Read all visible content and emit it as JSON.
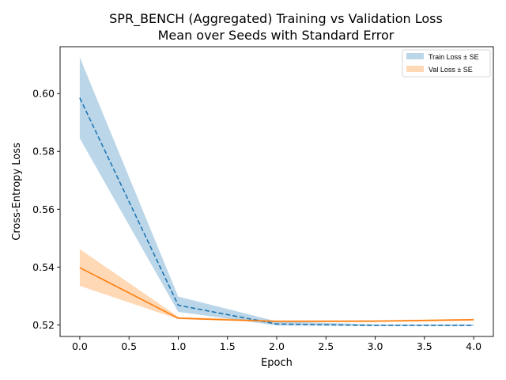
{
  "chart_data": {
    "type": "line",
    "title": "SPR_BENCH (Aggregated) Training vs Validation Loss",
    "subtitle": "Mean over Seeds with Standard Error",
    "xlabel": "Epoch",
    "ylabel": "Cross-Entropy Loss",
    "xlim": [
      -0.2,
      4.2
    ],
    "ylim": [
      0.516,
      0.6162
    ],
    "x_ticks": [
      0.0,
      0.5,
      1.0,
      1.5,
      2.0,
      2.5,
      3.0,
      3.5,
      4.0
    ],
    "x_tick_labels": [
      "0.0",
      "0.5",
      "1.0",
      "1.5",
      "2.0",
      "2.5",
      "3.0",
      "3.5",
      "4.0"
    ],
    "y_ticks": [
      0.52,
      0.54,
      0.56,
      0.58,
      0.6
    ],
    "y_tick_labels": [
      "0.52",
      "0.54",
      "0.56",
      "0.58",
      "0.60"
    ],
    "grid": false,
    "legend_position": "top-right",
    "legend": [
      "Train Loss ± SE",
      "Val Loss ± SE"
    ],
    "x": [
      0,
      1,
      2,
      3,
      4
    ],
    "series": [
      {
        "name": "Train Loss",
        "values": [
          0.5985,
          0.5268,
          0.5203,
          0.5198,
          0.5198
        ],
        "lower": [
          0.5845,
          0.5245,
          0.5198,
          0.5196,
          0.5196
        ],
        "upper": [
          0.6125,
          0.5298,
          0.5212,
          0.5202,
          0.5202
        ],
        "color": "#1f77b4",
        "band_color": "#1f77b4",
        "band_opacity": 0.3,
        "dashed": true
      },
      {
        "name": "Val Loss",
        "values": [
          0.5398,
          0.5223,
          0.5212,
          0.5213,
          0.5218
        ],
        "lower": [
          0.5335,
          0.522,
          0.5209,
          0.521,
          0.5214
        ],
        "upper": [
          0.5462,
          0.5228,
          0.5216,
          0.5216,
          0.5221
        ],
        "color": "#ff7f0e",
        "band_color": "#ff7f0e",
        "band_opacity": 0.3,
        "dashed": false
      }
    ]
  }
}
